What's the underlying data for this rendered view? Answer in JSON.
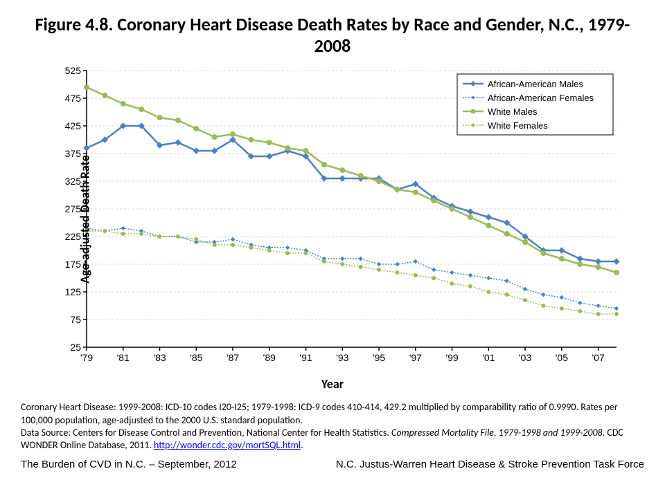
{
  "title": "Figure 4.8. Coronary Heart Disease Death Rates by Race and Gender, N.C., 1979-2008",
  "chart": {
    "type": "line",
    "ylabel": "Age-adjusted Death Rate",
    "xlabel": "Year",
    "ylim": [
      25,
      525
    ],
    "ytick_step": 50,
    "yticks": [
      25,
      75,
      125,
      175,
      225,
      275,
      325,
      375,
      425,
      475,
      525
    ],
    "xtick_labels": [
      "'79",
      "'81",
      "'83",
      "'85",
      "'87",
      "'89",
      "'91",
      "'93",
      "'95",
      "'97",
      "'99",
      "'01",
      "'03",
      "'05",
      "'07"
    ],
    "xtick_indices": [
      0,
      2,
      4,
      6,
      8,
      10,
      12,
      14,
      16,
      18,
      20,
      22,
      24,
      26,
      28
    ],
    "n_points": 30,
    "background_color": "#ffffff",
    "grid_color": "#d9d9d9",
    "axis_color": "#000000",
    "tick_fontsize": 14,
    "label_fontsize": 18,
    "legend_border": "#000000",
    "legend_bg": "#ffffff",
    "series": [
      {
        "name": "African-American Males",
        "color": "#4f81bd",
        "line_width": 2.5,
        "marker": "diamond",
        "marker_size": 8,
        "dash": "none",
        "values": [
          385,
          400,
          425,
          425,
          390,
          395,
          380,
          380,
          400,
          370,
          370,
          380,
          370,
          330,
          330,
          330,
          330,
          310,
          320,
          295,
          280,
          270,
          260,
          250,
          225,
          200,
          200,
          185,
          180,
          180
        ]
      },
      {
        "name": "African-American Females",
        "color": "#4f81bd",
        "line_width": 1.5,
        "marker": "diamond",
        "marker_size": 5,
        "dash": "2,2",
        "values": [
          240,
          235,
          240,
          235,
          225,
          225,
          215,
          215,
          220,
          210,
          205,
          205,
          200,
          185,
          185,
          185,
          175,
          175,
          180,
          165,
          160,
          155,
          150,
          145,
          130,
          120,
          115,
          105,
          100,
          95
        ]
      },
      {
        "name": "White Males",
        "color": "#9bbb59",
        "line_width": 2.5,
        "marker": "circle",
        "marker_size": 7,
        "dash": "none",
        "values": [
          495,
          480,
          465,
          455,
          440,
          435,
          420,
          405,
          410,
          400,
          395,
          385,
          380,
          355,
          345,
          335,
          325,
          310,
          305,
          290,
          275,
          260,
          245,
          230,
          215,
          195,
          185,
          175,
          170,
          160
        ]
      },
      {
        "name": "White Females",
        "color": "#9bbb59",
        "line_width": 1.5,
        "marker": "circle",
        "marker_size": 5,
        "dash": "2,2",
        "values": [
          235,
          235,
          230,
          230,
          225,
          225,
          220,
          210,
          210,
          205,
          200,
          195,
          195,
          180,
          175,
          170,
          165,
          160,
          155,
          150,
          140,
          135,
          125,
          120,
          110,
          100,
          95,
          90,
          85,
          85
        ]
      }
    ]
  },
  "footnote_line1": "Coronary Heart Disease: 1999-2008: ICD-10 codes I20-I25; 1979-1998: ICD-9 codes 410-414, 429.2 multiplied by comparability ratio of 0.9990. Rates per 100,000 population, age-adjusted to the 2000 U.S. standard population.",
  "footnote_line2a": "Data Source: Centers for Disease Control and Prevention, National Center for Health Statistics. ",
  "footnote_line2b": "Compressed Mortality File, 1979-1998 and 1999-2008",
  "footnote_line2c": ". CDC WONDER Online Database, 2011. ",
  "footnote_link": "http://wonder.cdc.gov/mortSQL.html",
  "footer_left": "The Burden of CVD in N.C. – September, 2012",
  "footer_right": "N.C. Justus-Warren Heart Disease & Stroke Prevention Task Force"
}
